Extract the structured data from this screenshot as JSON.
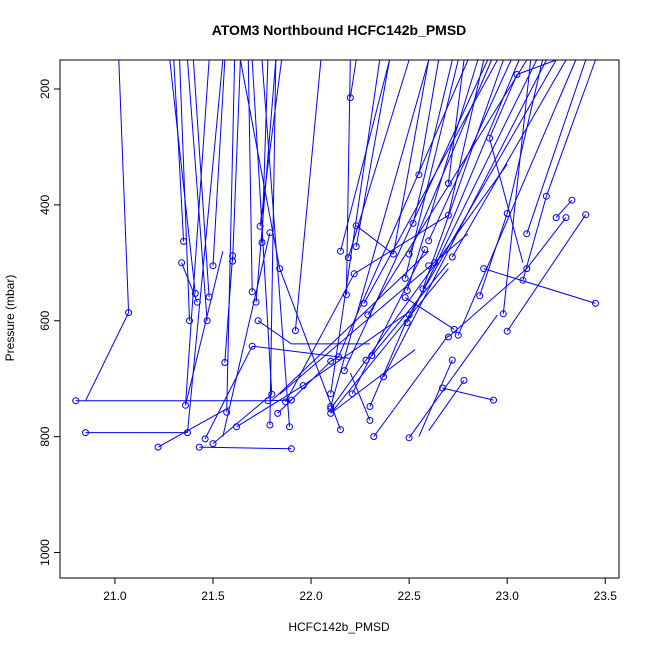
{
  "chart_data": {
    "type": "scatter",
    "title": "ATOM3 Northbound HCFC142b_PMSD",
    "xlabel": "HCFC142b_PMSD",
    "ylabel": "Pressure (mbar)",
    "xlim": [
      20.72,
      23.57
    ],
    "ylim": [
      1044,
      150
    ],
    "y_reversed": true,
    "x_ticks": [
      "21.0",
      "21.5",
      "22.0",
      "22.5",
      "23.0",
      "23.5"
    ],
    "y_ticks": [
      "200",
      "400",
      "600",
      "800",
      "1000"
    ],
    "grid": false,
    "legend": "none",
    "series_color": "#0000ff",
    "marker": "open-circle",
    "connected_by_lines": true,
    "points": [
      {
        "x": 20.8,
        "y": 738
      },
      {
        "x": 21.78,
        "y": 738
      },
      {
        "x": 21.9,
        "y": 737
      },
      {
        "x": 20.85,
        "y": 793
      },
      {
        "x": 21.37,
        "y": 793
      },
      {
        "x": 21.07,
        "y": 586
      },
      {
        "x": 21.22,
        "y": 818
      },
      {
        "x": 21.43,
        "y": 818
      },
      {
        "x": 21.9,
        "y": 821
      },
      {
        "x": 21.35,
        "y": 463
      },
      {
        "x": 21.34,
        "y": 500
      },
      {
        "x": 21.38,
        "y": 600
      },
      {
        "x": 21.41,
        "y": 553
      },
      {
        "x": 21.42,
        "y": 568
      },
      {
        "x": 21.47,
        "y": 600
      },
      {
        "x": 21.48,
        "y": 559
      },
      {
        "x": 21.5,
        "y": 505
      },
      {
        "x": 21.36,
        "y": 746
      },
      {
        "x": 21.46,
        "y": 804
      },
      {
        "x": 21.5,
        "y": 812
      },
      {
        "x": 21.56,
        "y": 672
      },
      {
        "x": 21.57,
        "y": 758
      },
      {
        "x": 21.6,
        "y": 488
      },
      {
        "x": 21.6,
        "y": 497
      },
      {
        "x": 21.62,
        "y": 783
      },
      {
        "x": 21.7,
        "y": 644
      },
      {
        "x": 21.7,
        "y": 550
      },
      {
        "x": 21.72,
        "y": 568
      },
      {
        "x": 21.73,
        "y": 600
      },
      {
        "x": 21.74,
        "y": 437
      },
      {
        "x": 21.75,
        "y": 465
      },
      {
        "x": 21.79,
        "y": 448
      },
      {
        "x": 21.8,
        "y": 727
      },
      {
        "x": 21.79,
        "y": 780
      },
      {
        "x": 21.83,
        "y": 760
      },
      {
        "x": 21.84,
        "y": 510
      },
      {
        "x": 21.87,
        "y": 740
      },
      {
        "x": 21.89,
        "y": 783
      },
      {
        "x": 21.92,
        "y": 617
      },
      {
        "x": 21.96,
        "y": 712
      },
      {
        "x": 22.1,
        "y": 670
      },
      {
        "x": 22.1,
        "y": 726
      },
      {
        "x": 22.1,
        "y": 748
      },
      {
        "x": 22.1,
        "y": 752
      },
      {
        "x": 22.1,
        "y": 760
      },
      {
        "x": 22.14,
        "y": 662
      },
      {
        "x": 22.15,
        "y": 788
      },
      {
        "x": 22.15,
        "y": 480
      },
      {
        "x": 22.17,
        "y": 686
      },
      {
        "x": 22.18,
        "y": 555
      },
      {
        "x": 22.2,
        "y": 215
      },
      {
        "x": 22.19,
        "y": 491
      },
      {
        "x": 22.21,
        "y": 726
      },
      {
        "x": 22.22,
        "y": 519
      },
      {
        "x": 22.23,
        "y": 472
      },
      {
        "x": 22.23,
        "y": 436
      },
      {
        "x": 22.27,
        "y": 570
      },
      {
        "x": 22.28,
        "y": 668
      },
      {
        "x": 22.29,
        "y": 590
      },
      {
        "x": 22.3,
        "y": 748
      },
      {
        "x": 22.3,
        "y": 772
      },
      {
        "x": 22.31,
        "y": 660
      },
      {
        "x": 22.32,
        "y": 800
      },
      {
        "x": 22.37,
        "y": 697
      },
      {
        "x": 22.42,
        "y": 485
      },
      {
        "x": 22.48,
        "y": 560
      },
      {
        "x": 22.49,
        "y": 548
      },
      {
        "x": 22.49,
        "y": 603
      },
      {
        "x": 22.48,
        "y": 527
      },
      {
        "x": 22.5,
        "y": 590
      },
      {
        "x": 22.5,
        "y": 485
      },
      {
        "x": 22.5,
        "y": 802
      },
      {
        "x": 22.52,
        "y": 432
      },
      {
        "x": 22.55,
        "y": 348
      },
      {
        "x": 22.57,
        "y": 545
      },
      {
        "x": 22.58,
        "y": 477
      },
      {
        "x": 22.6,
        "y": 462
      },
      {
        "x": 22.6,
        "y": 505
      },
      {
        "x": 22.63,
        "y": 500
      },
      {
        "x": 22.67,
        "y": 716
      },
      {
        "x": 22.7,
        "y": 418
      },
      {
        "x": 22.7,
        "y": 363
      },
      {
        "x": 22.7,
        "y": 628
      },
      {
        "x": 22.72,
        "y": 490
      },
      {
        "x": 22.72,
        "y": 668
      },
      {
        "x": 22.73,
        "y": 615
      },
      {
        "x": 22.75,
        "y": 625
      },
      {
        "x": 22.78,
        "y": 703
      },
      {
        "x": 22.86,
        "y": 557
      },
      {
        "x": 22.88,
        "y": 510
      },
      {
        "x": 22.91,
        "y": 285
      },
      {
        "x": 22.93,
        "y": 737
      },
      {
        "x": 22.98,
        "y": 588
      },
      {
        "x": 23.0,
        "y": 415
      },
      {
        "x": 23.0,
        "y": 618
      },
      {
        "x": 23.05,
        "y": 175
      },
      {
        "x": 23.08,
        "y": 530
      },
      {
        "x": 23.1,
        "y": 450
      },
      {
        "x": 23.1,
        "y": 510
      },
      {
        "x": 23.2,
        "y": 385
      },
      {
        "x": 23.25,
        "y": 422
      },
      {
        "x": 23.3,
        "y": 422
      },
      {
        "x": 23.33,
        "y": 392
      },
      {
        "x": 23.4,
        "y": 417
      },
      {
        "x": 23.45,
        "y": 570
      }
    ],
    "segments": [
      [
        21.07,
        586,
        20.85,
        738
      ],
      [
        21.07,
        586,
        21.02,
        150
      ],
      [
        20.8,
        738,
        21.78,
        738
      ],
      [
        21.78,
        738,
        21.9,
        737
      ],
      [
        20.85,
        793,
        21.37,
        793
      ],
      [
        21.37,
        793,
        21.55,
        150
      ],
      [
        21.22,
        818,
        21.58,
        750
      ],
      [
        21.43,
        818,
        21.9,
        821
      ],
      [
        21.35,
        463,
        21.3,
        150
      ],
      [
        21.34,
        500,
        21.42,
        568
      ],
      [
        21.38,
        600,
        21.33,
        150
      ],
      [
        21.41,
        553,
        21.28,
        150
      ],
      [
        21.47,
        600,
        21.37,
        150
      ],
      [
        21.48,
        559,
        21.4,
        150
      ],
      [
        21.5,
        505,
        21.56,
        150
      ],
      [
        21.36,
        746,
        21.55,
        480
      ],
      [
        21.36,
        746,
        21.48,
        150
      ],
      [
        21.46,
        804,
        21.7,
        644
      ],
      [
        21.5,
        812,
        21.8,
        727
      ],
      [
        21.56,
        672,
        21.6,
        488
      ],
      [
        21.57,
        758,
        21.61,
        150
      ],
      [
        21.6,
        497,
        21.64,
        150
      ],
      [
        21.62,
        783,
        21.96,
        712
      ],
      [
        21.7,
        550,
        21.68,
        150
      ],
      [
        21.72,
        568,
        21.82,
        150
      ],
      [
        21.73,
        600,
        21.9,
        640
      ],
      [
        21.74,
        437,
        21.85,
        150
      ],
      [
        21.75,
        465,
        21.78,
        150
      ],
      [
        21.79,
        448,
        21.55,
        800
      ],
      [
        21.8,
        727,
        21.7,
        150
      ],
      [
        21.79,
        780,
        21.82,
        150
      ],
      [
        21.83,
        760,
        22.1,
        670
      ],
      [
        21.84,
        510,
        21.64,
        150
      ],
      [
        21.84,
        510,
        22.15,
        788
      ],
      [
        21.87,
        740,
        22.22,
        519
      ],
      [
        21.89,
        783,
        21.75,
        150
      ],
      [
        21.92,
        617,
        22.05,
        150
      ],
      [
        21.9,
        640,
        22.3,
        640
      ],
      [
        21.96,
        712,
        22.5,
        585
      ],
      [
        21.7,
        644,
        22.2,
        665
      ],
      [
        21.8,
        738,
        22.6,
        480
      ],
      [
        21.84,
        727,
        22.8,
        450
      ],
      [
        22.1,
        670,
        22.14,
        662
      ],
      [
        22.1,
        726,
        22.35,
        150
      ],
      [
        22.1,
        748,
        22.6,
        150
      ],
      [
        22.1,
        752,
        22.28,
        668
      ],
      [
        22.1,
        760,
        22.7,
        510
      ],
      [
        22.14,
        662,
        22.8,
        150
      ],
      [
        22.15,
        480,
        22.4,
        150
      ],
      [
        22.17,
        686,
        22.9,
        150
      ],
      [
        22.18,
        555,
        22.2,
        150
      ],
      [
        22.2,
        215,
        22.23,
        150
      ],
      [
        22.19,
        491,
        22.5,
        150
      ],
      [
        22.21,
        726,
        22.58,
        477
      ],
      [
        22.22,
        519,
        22.7,
        418
      ],
      [
        22.23,
        472,
        22.4,
        150
      ],
      [
        22.23,
        436,
        22.42,
        485
      ],
      [
        22.27,
        570,
        22.95,
        150
      ],
      [
        22.28,
        668,
        23.0,
        330
      ],
      [
        22.29,
        590,
        23.1,
        150
      ],
      [
        22.3,
        748,
        22.5,
        590
      ],
      [
        22.3,
        772,
        22.2,
        690
      ],
      [
        22.31,
        660,
        22.7,
        500
      ],
      [
        22.32,
        800,
        22.7,
        625
      ],
      [
        22.37,
        697,
        23.2,
        150
      ],
      [
        22.42,
        485,
        22.6,
        150
      ],
      [
        22.48,
        560,
        22.73,
        615
      ],
      [
        22.49,
        548,
        22.85,
        150
      ],
      [
        22.49,
        603,
        23.15,
        150
      ],
      [
        22.48,
        527,
        22.75,
        150
      ],
      [
        22.5,
        590,
        23.25,
        150
      ],
      [
        22.5,
        485,
        22.92,
        150
      ],
      [
        22.5,
        802,
        22.95,
        590
      ],
      [
        22.52,
        432,
        22.72,
        150
      ],
      [
        22.55,
        348,
        22.65,
        150
      ],
      [
        22.57,
        545,
        22.98,
        150
      ],
      [
        22.6,
        462,
        23.02,
        150
      ],
      [
        22.63,
        500,
        23.06,
        150
      ],
      [
        22.67,
        716,
        22.93,
        737
      ],
      [
        22.7,
        418,
        22.88,
        150
      ],
      [
        22.7,
        363,
        22.78,
        150
      ],
      [
        22.7,
        628,
        23.1,
        510
      ],
      [
        22.72,
        490,
        23.3,
        150
      ],
      [
        22.72,
        668,
        22.55,
        800
      ],
      [
        22.75,
        625,
        23.35,
        150
      ],
      [
        22.78,
        703,
        22.6,
        790
      ],
      [
        22.86,
        557,
        23.0,
        415
      ],
      [
        22.88,
        510,
        23.45,
        570
      ],
      [
        22.91,
        285,
        23.05,
        175
      ],
      [
        22.91,
        285,
        23.08,
        500
      ],
      [
        22.98,
        588,
        23.12,
        150
      ],
      [
        23.0,
        415,
        23.18,
        150
      ],
      [
        23.0,
        618,
        23.4,
        417
      ],
      [
        23.05,
        175,
        23.25,
        150
      ],
      [
        23.08,
        530,
        23.2,
        385
      ],
      [
        23.1,
        450,
        23.4,
        150
      ],
      [
        23.1,
        510,
        23.3,
        422
      ],
      [
        23.2,
        385,
        23.45,
        150
      ],
      [
        23.25,
        422,
        23.33,
        392
      ],
      [
        22.53,
        650,
        22.1,
        760
      ]
    ]
  }
}
